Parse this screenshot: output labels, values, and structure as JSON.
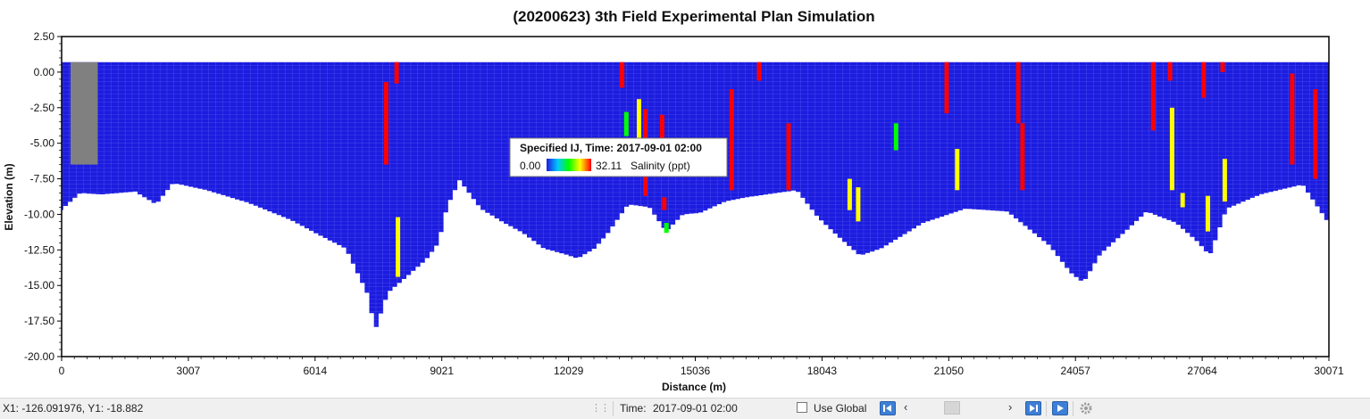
{
  "chart_data": {
    "type": "heatmap",
    "title": "(20200623) 3th Field Experimental Plan Simulation",
    "xlabel": "Distance (m)",
    "ylabel": "Elevation (m)",
    "xlim": [
      0,
      30071
    ],
    "ylim": [
      -20.0,
      2.5
    ],
    "x_ticks": [
      "0",
      "3007",
      "6014",
      "9021",
      "12029",
      "15036",
      "18043",
      "21050",
      "24057",
      "27064",
      "30071"
    ],
    "y_ticks": [
      "2.50",
      "0.00",
      "-2.50",
      "-5.00",
      "-7.50",
      "-10.00",
      "-12.50",
      "-15.00",
      "-17.50",
      "-20.00"
    ],
    "surface_elevation": 0.7,
    "bottom_profile": [
      [
        0,
        -9.8
      ],
      [
        500,
        -8.5
      ],
      [
        1000,
        -8.6
      ],
      [
        1800,
        -8.4
      ],
      [
        2300,
        -9.3
      ],
      [
        2700,
        -7.8
      ],
      [
        3500,
        -8.3
      ],
      [
        4500,
        -9.2
      ],
      [
        5500,
        -10.4
      ],
      [
        6200,
        -11.5
      ],
      [
        6800,
        -12.4
      ],
      [
        7300,
        -15.5
      ],
      [
        7500,
        -18.1
      ],
      [
        7800,
        -15.5
      ],
      [
        8200,
        -14.5
      ],
      [
        8700,
        -13.2
      ],
      [
        9000,
        -12.0
      ],
      [
        9200,
        -9.5
      ],
      [
        9500,
        -7.6
      ],
      [
        10000,
        -9.6
      ],
      [
        10500,
        -10.5
      ],
      [
        11000,
        -11.3
      ],
      [
        11500,
        -12.4
      ],
      [
        12000,
        -12.8
      ],
      [
        12300,
        -13.1
      ],
      [
        12700,
        -12.4
      ],
      [
        13000,
        -11.4
      ],
      [
        13500,
        -9.3
      ],
      [
        14000,
        -9.5
      ],
      [
        14400,
        -11.2
      ],
      [
        14800,
        -10.0
      ],
      [
        15200,
        -9.9
      ],
      [
        15800,
        -9.1
      ],
      [
        16300,
        -8.8
      ],
      [
        17500,
        -8.3
      ],
      [
        18000,
        -10.2
      ],
      [
        18500,
        -11.6
      ],
      [
        19000,
        -12.9
      ],
      [
        19500,
        -12.4
      ],
      [
        20500,
        -10.6
      ],
      [
        21500,
        -9.6
      ],
      [
        22500,
        -9.8
      ],
      [
        23000,
        -11.0
      ],
      [
        23500,
        -12.2
      ],
      [
        24000,
        -14.1
      ],
      [
        24300,
        -14.8
      ],
      [
        24700,
        -12.8
      ],
      [
        25300,
        -11.2
      ],
      [
        25800,
        -9.8
      ],
      [
        26500,
        -10.6
      ],
      [
        27000,
        -11.9
      ],
      [
        27300,
        -12.9
      ],
      [
        27700,
        -9.6
      ],
      [
        28500,
        -8.6
      ],
      [
        29500,
        -7.9
      ],
      [
        30071,
        -10.4
      ]
    ],
    "dry_cells_x_range": [
      0,
      900
    ],
    "dry_cells_bottom": -6.5,
    "colorbar": {
      "caption": "Specified IJ,  Time: 2017-09-01 02:00",
      "min_label": "0.00",
      "max_label": "32.11",
      "min": 0.0,
      "max": 32.11,
      "variable": "Salinity (ppt)",
      "colors": [
        "#1c1ce0",
        "#00c8ff",
        "#00ff00",
        "#ffff00",
        "#ff0000"
      ],
      "position": "center"
    },
    "salinity_columns": [
      {
        "x": 7700,
        "top": -0.7,
        "bottom": -6.5,
        "value": 30
      },
      {
        "x": 7950,
        "top": 0.7,
        "bottom": -0.8,
        "value": 30
      },
      {
        "x": 7980,
        "top": -10.2,
        "bottom": -14.4,
        "value": 28
      },
      {
        "x": 13300,
        "top": 0.7,
        "bottom": -1.1,
        "value": 30
      },
      {
        "x": 13400,
        "top": -2.8,
        "bottom": -4.5,
        "value": 14
      },
      {
        "x": 13700,
        "top": -1.9,
        "bottom": -5.2,
        "value": 23
      },
      {
        "x": 13850,
        "top": -2.6,
        "bottom": -8.7,
        "value": 31
      },
      {
        "x": 14250,
        "top": -3.0,
        "bottom": -5.3,
        "value": 31
      },
      {
        "x": 14300,
        "top": -8.8,
        "bottom": -9.7,
        "value": 29
      },
      {
        "x": 14350,
        "top": -10.6,
        "bottom": -11.3,
        "value": 14
      },
      {
        "x": 15900,
        "top": -1.2,
        "bottom": -8.3,
        "value": 31
      },
      {
        "x": 16550,
        "top": 0.7,
        "bottom": -0.6,
        "value": 31
      },
      {
        "x": 17250,
        "top": -3.6,
        "bottom": -8.3,
        "value": 30
      },
      {
        "x": 18700,
        "top": -7.5,
        "bottom": -9.7,
        "value": 26
      },
      {
        "x": 18900,
        "top": -8.1,
        "bottom": -10.5,
        "value": 24
      },
      {
        "x": 19800,
        "top": -3.6,
        "bottom": -5.5,
        "value": 14
      },
      {
        "x": 21000,
        "top": 0.7,
        "bottom": -2.9,
        "value": 31
      },
      {
        "x": 21250,
        "top": -5.4,
        "bottom": -8.3,
        "value": 28
      },
      {
        "x": 22700,
        "top": 0.7,
        "bottom": -3.6,
        "value": 31
      },
      {
        "x": 22800,
        "top": -3.6,
        "bottom": -8.3,
        "value": 29
      },
      {
        "x": 25900,
        "top": 0.7,
        "bottom": -4.1,
        "value": 31
      },
      {
        "x": 26300,
        "top": 0.7,
        "bottom": -0.6,
        "value": 31
      },
      {
        "x": 26350,
        "top": -2.5,
        "bottom": -8.3,
        "value": 28
      },
      {
        "x": 26600,
        "top": -8.5,
        "bottom": -9.5,
        "value": 22
      },
      {
        "x": 27100,
        "top": 0.7,
        "bottom": -1.8,
        "value": 31
      },
      {
        "x": 27200,
        "top": -8.7,
        "bottom": -11.2,
        "value": 28
      },
      {
        "x": 27550,
        "top": 0.7,
        "bottom": 0.0,
        "value": 31
      },
      {
        "x": 27600,
        "top": -6.1,
        "bottom": -9.1,
        "value": 27
      },
      {
        "x": 29200,
        "top": -0.1,
        "bottom": -6.5,
        "value": 31
      },
      {
        "x": 29750,
        "top": -1.2,
        "bottom": -7.5,
        "value": 31
      }
    ]
  },
  "status": {
    "coords": "X1: -126.091976, Y1: -18.882",
    "time_label": "Time:",
    "time_value": "2017-09-01 02:00",
    "use_global_label": "Use Global"
  }
}
